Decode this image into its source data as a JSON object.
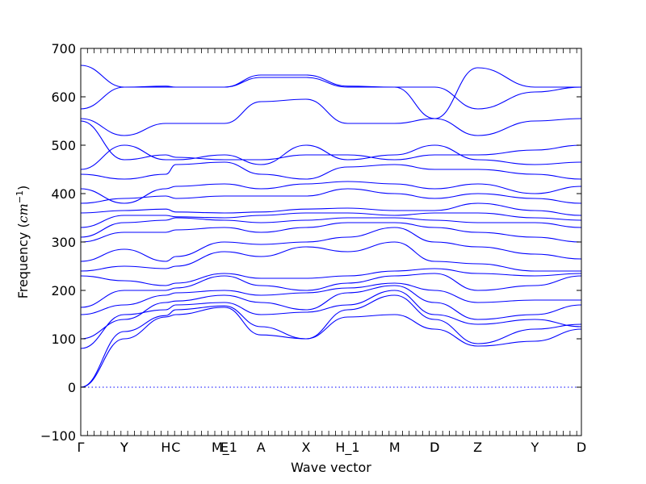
{
  "chart_data": {
    "type": "line",
    "title": "",
    "xlabel": "Wave vector",
    "ylabel_prefix": "Frequency (",
    "ylabel_unit": "cm",
    "ylabel_exp": "−1",
    "ylabel_suffix": ")",
    "ylim": [
      -100,
      700
    ],
    "yticks": [
      -100,
      0,
      100,
      200,
      300,
      400,
      500,
      600,
      700
    ],
    "xlim": [
      0,
      1
    ],
    "grid": false,
    "legend": "none",
    "line_color": "#0000ff",
    "high_symmetry_points": [
      {
        "label": "Γ",
        "x": 0.0
      },
      {
        "label": "Y",
        "x": 0.087
      },
      {
        "label": "Y",
        "x": 0.087
      },
      {
        "label": "H",
        "x": 0.17
      },
      {
        "label": "C",
        "x": 0.19
      },
      {
        "label": "E",
        "x": 0.287
      },
      {
        "label": "M_1",
        "x": 0.287
      },
      {
        "label": "A",
        "x": 0.36
      },
      {
        "label": "X",
        "x": 0.45
      },
      {
        "label": "H_1",
        "x": 0.533
      },
      {
        "label": "M",
        "x": 0.627
      },
      {
        "label": "D",
        "x": 0.707
      },
      {
        "label": "D",
        "x": 0.707
      },
      {
        "label": "Z",
        "x": 0.793
      },
      {
        "label": "Y",
        "x": 0.907
      },
      {
        "label": "D",
        "x": 1.0
      }
    ],
    "knots": [
      0.0,
      0.087,
      0.17,
      0.19,
      0.287,
      0.36,
      0.45,
      0.533,
      0.627,
      0.707,
      0.793,
      0.907,
      1.0
    ],
    "series": [
      {
        "values": [
          0,
          100,
          145,
          150,
          165,
          108,
          100,
          145,
          150,
          120,
          85,
          95,
          120
        ]
      },
      {
        "values": [
          0,
          115,
          148,
          160,
          168,
          125,
          100,
          160,
          190,
          140,
          90,
          120,
          130
        ]
      },
      {
        "values": [
          80,
          150,
          160,
          170,
          175,
          150,
          155,
          170,
          200,
          150,
          130,
          140,
          125
        ]
      },
      {
        "values": [
          100,
          140,
          175,
          178,
          190,
          175,
          160,
          195,
          210,
          175,
          140,
          150,
          170
        ]
      },
      {
        "values": [
          150,
          170,
          190,
          195,
          200,
          190,
          195,
          205,
          215,
          200,
          175,
          180,
          180
        ]
      },
      {
        "values": [
          165,
          200,
          200,
          205,
          230,
          210,
          200,
          215,
          230,
          235,
          200,
          210,
          230
        ]
      },
      {
        "values": [
          230,
          220,
          210,
          215,
          235,
          225,
          225,
          230,
          240,
          245,
          235,
          230,
          235
        ]
      },
      {
        "values": [
          240,
          250,
          245,
          250,
          280,
          270,
          290,
          280,
          300,
          260,
          255,
          240,
          240
        ]
      },
      {
        "values": [
          260,
          285,
          260,
          270,
          300,
          295,
          300,
          310,
          330,
          300,
          290,
          275,
          265
        ]
      },
      {
        "values": [
          300,
          320,
          320,
          325,
          330,
          320,
          330,
          340,
          340,
          330,
          320,
          310,
          300
        ]
      },
      {
        "values": [
          310,
          340,
          345,
          350,
          345,
          340,
          345,
          350,
          350,
          345,
          340,
          340,
          330
        ]
      },
      {
        "values": [
          330,
          355,
          355,
          352,
          350,
          355,
          360,
          360,
          355,
          360,
          360,
          350,
          345
        ]
      },
      {
        "values": [
          360,
          365,
          368,
          362,
          360,
          362,
          368,
          370,
          365,
          365,
          380,
          365,
          355
        ]
      },
      {
        "values": [
          380,
          390,
          395,
          390,
          395,
          395,
          395,
          410,
          400,
          390,
          400,
          390,
          380
        ]
      },
      {
        "values": [
          410,
          380,
          410,
          415,
          420,
          410,
          420,
          425,
          420,
          410,
          420,
          400,
          415
        ]
      },
      {
        "values": [
          440,
          430,
          440,
          460,
          465,
          440,
          430,
          455,
          460,
          450,
          450,
          440,
          430
        ]
      },
      {
        "values": [
          450,
          500,
          470,
          470,
          480,
          460,
          500,
          470,
          480,
          500,
          470,
          460,
          465
        ]
      },
      {
        "values": [
          550,
          470,
          480,
          475,
          470,
          470,
          480,
          480,
          470,
          480,
          480,
          490,
          500
        ]
      },
      {
        "values": [
          555,
          520,
          545,
          545,
          545,
          590,
          595,
          545,
          545,
          555,
          520,
          550,
          555
        ]
      },
      {
        "values": [
          575,
          620,
          620,
          620,
          620,
          640,
          640,
          620,
          620,
          620,
          575,
          610,
          620
        ]
      },
      {
        "values": [
          665,
          620,
          622,
          620,
          620,
          645,
          645,
          622,
          620,
          555,
          660,
          620,
          620
        ]
      }
    ]
  }
}
